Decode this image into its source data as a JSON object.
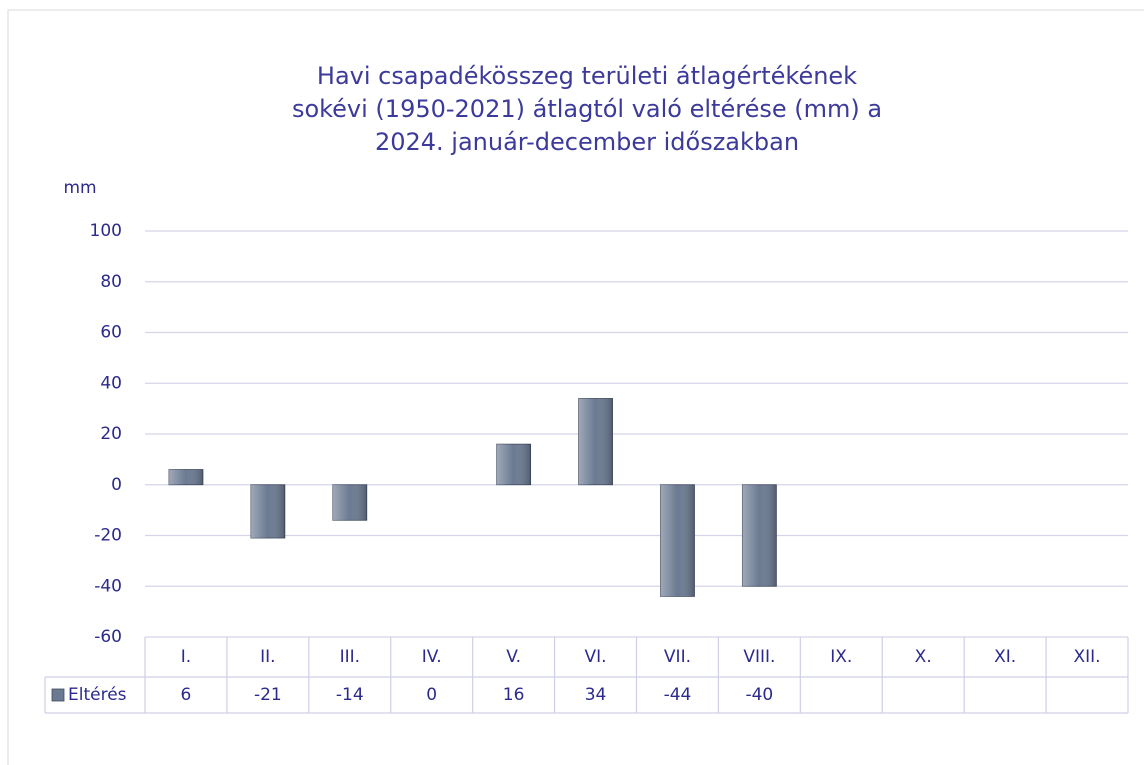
{
  "chart_data": {
    "type": "bar",
    "title_lines": [
      "Havi csapadékösszeg területi átlagértékének",
      "sokévi (1950-2021) átlagtól való eltérése (mm) a",
      "2024. január-december időszakban"
    ],
    "y_label": "mm",
    "categories": [
      "I.",
      "II.",
      "III.",
      "IV.",
      "V.",
      "VI.",
      "VII.",
      "VIII.",
      "IX.",
      "X.",
      "XI.",
      "XII."
    ],
    "series": [
      {
        "name": "Eltérés",
        "color": "#6b7a92",
        "values": [
          6,
          -21,
          -14,
          0,
          16,
          34,
          -44,
          -40,
          null,
          null,
          null,
          null
        ]
      }
    ],
    "ylim": [
      -60,
      100
    ],
    "yticks": [
      -60,
      -40,
      -20,
      0,
      20,
      40,
      60,
      80,
      100
    ],
    "grid": true,
    "data_table": true
  }
}
